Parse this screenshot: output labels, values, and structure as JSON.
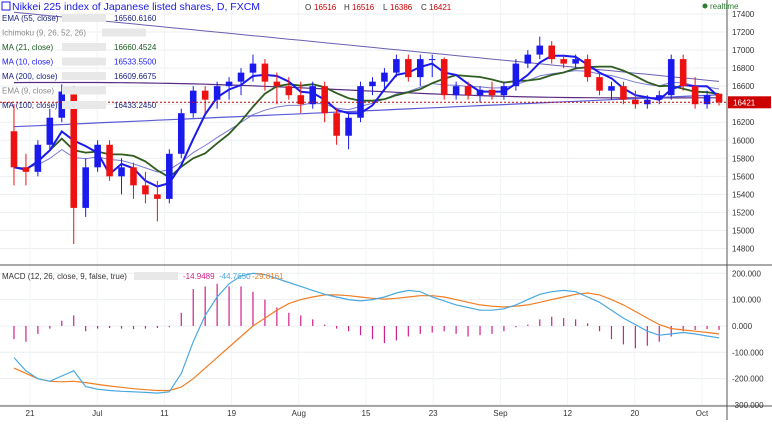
{
  "header": {
    "title": "Nikkei 225 index of Japanese listed shares, D, FXCM",
    "ohlc": {
      "o_label": "O",
      "o": "16516",
      "h_label": "H",
      "h": "16516",
      "l_label": "L",
      "l": "16386",
      "c_label": "C",
      "c": "16421"
    },
    "realtime": "realtime"
  },
  "legend": [
    {
      "label": "EMA (55, close)",
      "value": "16560.6160",
      "color": "#1a237e"
    },
    {
      "label": "Ichimoku (9, 26, 52, 26)",
      "value": "",
      "color": "#8a8a8a"
    },
    {
      "label": "MA (21, close)",
      "value": "16660.4524",
      "color": "#1b5e20"
    },
    {
      "label": "MA (10, close)",
      "value": "16533.5500",
      "color": "#1a1aff"
    },
    {
      "label": "MA (200, close)",
      "value": "16609.6675",
      "color": "#1a237e"
    },
    {
      "label": "EMA (9, close)",
      "value": "",
      "color": "#8a8a8a"
    },
    {
      "label": "MA (100, close)",
      "value": "16433.2450",
      "color": "#1a237e"
    }
  ],
  "macd_legend": {
    "label": "MACD (12, 26, close, 9, false, true)",
    "hist": "-14.9489",
    "macd": "-44.7650",
    "signal": "-29.8161"
  },
  "colors": {
    "up": "#1a1aee",
    "down": "#ee1111",
    "ma10": "#1a1aee",
    "ma21": "#2e5d1f",
    "ema55": "#3b3b99",
    "ma100": "#5b5bd6",
    "ma200": "#5a2d82",
    "macd": "#4aa8e0",
    "signal": "#f07e26",
    "hist": "#d0208a",
    "price_line": "#cc0000"
  },
  "chart_data": [
    {
      "type": "candlestick",
      "title": "Nikkei 225 index of Japanese listed shares, D, FXCM",
      "x_labels": [
        "21",
        "Jul",
        "11",
        "19",
        "Aug",
        "15",
        "23",
        "Sep",
        "12",
        "20",
        "Oct"
      ],
      "y_ticks": [
        "17400",
        "17200",
        "17000",
        "16800",
        "16600",
        "16400",
        "16200",
        "16000",
        "15800",
        "15600",
        "15400",
        "15200",
        "15000",
        "14800"
      ],
      "ylim": [
        14650,
        17500
      ],
      "last_price": "16421",
      "candles": [
        [
          16100,
          16400,
          15500,
          15700
        ],
        [
          15700,
          15850,
          15500,
          15650
        ],
        [
          15650,
          16000,
          15600,
          15950
        ],
        [
          15950,
          16350,
          15900,
          16250
        ],
        [
          16250,
          16620,
          16200,
          16540
        ],
        [
          16540,
          16600,
          14850,
          15250
        ],
        [
          15250,
          15800,
          15150,
          15700
        ],
        [
          15700,
          16000,
          15650,
          15950
        ],
        [
          15950,
          16000,
          15550,
          15600
        ],
        [
          15600,
          15800,
          15400,
          15700
        ],
        [
          15700,
          15750,
          15350,
          15500
        ],
        [
          15500,
          15650,
          15300,
          15400
        ],
        [
          15400,
          15550,
          15100,
          15350
        ],
        [
          15350,
          15900,
          15300,
          15850
        ],
        [
          15850,
          16350,
          15800,
          16300
        ],
        [
          16300,
          16600,
          16250,
          16550
        ],
        [
          16550,
          16600,
          16300,
          16450
        ],
        [
          16450,
          16650,
          16350,
          16600
        ],
        [
          16600,
          16700,
          16450,
          16650
        ],
        [
          16650,
          16800,
          16500,
          16750
        ],
        [
          16750,
          16950,
          16650,
          16850
        ],
        [
          16850,
          16900,
          16550,
          16650
        ],
        [
          16650,
          16750,
          16400,
          16600
        ],
        [
          16600,
          16700,
          16450,
          16500
        ],
        [
          16500,
          16650,
          16300,
          16400
        ],
        [
          16400,
          16650,
          16350,
          16600
        ],
        [
          16600,
          16650,
          16200,
          16300
        ],
        [
          16300,
          16350,
          15950,
          16050
        ],
        [
          16050,
          16300,
          15900,
          16250
        ],
        [
          16250,
          16650,
          16200,
          16600
        ],
        [
          16600,
          16700,
          16500,
          16650
        ],
        [
          16650,
          16800,
          16550,
          16750
        ],
        [
          16750,
          16950,
          16700,
          16900
        ],
        [
          16900,
          16950,
          16650,
          16700
        ],
        [
          16700,
          16950,
          16600,
          16900
        ],
        [
          16900,
          16950,
          16700,
          16900
        ],
        [
          16900,
          16920,
          16450,
          16500
        ],
        [
          16500,
          16650,
          16450,
          16600
        ],
        [
          16600,
          16650,
          16450,
          16500
        ],
        [
          16500,
          16600,
          16420,
          16560
        ],
        [
          16560,
          16650,
          16450,
          16500
        ],
        [
          16500,
          16650,
          16450,
          16600
        ],
        [
          16600,
          16900,
          16550,
          16850
        ],
        [
          16850,
          17000,
          16800,
          16950
        ],
        [
          16950,
          17150,
          16900,
          17050
        ],
        [
          17050,
          17100,
          16850,
          16900
        ],
        [
          16900,
          16950,
          16800,
          16850
        ],
        [
          16850,
          16950,
          16800,
          16900
        ],
        [
          16900,
          16950,
          16650,
          16700
        ],
        [
          16700,
          16750,
          16500,
          16550
        ],
        [
          16550,
          16650,
          16450,
          16600
        ],
        [
          16600,
          16650,
          16400,
          16450
        ],
        [
          16450,
          16550,
          16350,
          16400
        ],
        [
          16400,
          16500,
          16350,
          16450
        ],
        [
          16450,
          16550,
          16400,
          16500
        ],
        [
          16500,
          16950,
          16450,
          16900
        ],
        [
          16900,
          16950,
          16550,
          16600
        ],
        [
          16600,
          16700,
          16350,
          16400
        ],
        [
          16400,
          16550,
          16350,
          16500
        ],
        [
          16516,
          16516,
          16386,
          16421
        ]
      ]
    },
    {
      "type": "macd",
      "y_ticks": [
        "200.000",
        "100.000",
        "0.000",
        "-100.000",
        "-200.000",
        "-300.000"
      ],
      "ylim": [
        -300,
        220
      ],
      "macd": [
        -120,
        -170,
        -200,
        -210,
        -190,
        -170,
        -230,
        -240,
        -245,
        -248,
        -250,
        -252,
        -255,
        -250,
        -180,
        -60,
        40,
        110,
        160,
        190,
        200,
        195,
        180,
        165,
        150,
        135,
        120,
        110,
        100,
        95,
        100,
        110,
        125,
        135,
        130,
        110,
        95,
        80,
        70,
        60,
        60,
        65,
        80,
        100,
        120,
        130,
        135,
        130,
        110,
        90,
        60,
        30,
        5,
        -20,
        -35,
        -30,
        -25,
        -30,
        -38,
        -45
      ],
      "signal": [
        -160,
        -180,
        -200,
        -210,
        -212,
        -210,
        -215,
        -222,
        -228,
        -233,
        -238,
        -242,
        -245,
        -245,
        -232,
        -200,
        -160,
        -120,
        -80,
        -40,
        0,
        30,
        60,
        85,
        100,
        110,
        118,
        118,
        115,
        110,
        105,
        102,
        105,
        110,
        115,
        115,
        110,
        100,
        90,
        80,
        75,
        72,
        75,
        80,
        90,
        100,
        110,
        120,
        125,
        118,
        100,
        80,
        55,
        30,
        5,
        -10,
        -15,
        -20,
        -25,
        -30
      ],
      "histogram": [
        -50,
        -60,
        -30,
        -10,
        20,
        40,
        -20,
        -10,
        -8,
        -10,
        -12,
        -10,
        -8,
        -5,
        50,
        140,
        150,
        160,
        150,
        150,
        130,
        100,
        70,
        50,
        40,
        25,
        5,
        -10,
        -20,
        -35,
        -50,
        -65,
        -55,
        -40,
        -30,
        -25,
        -20,
        -30,
        -40,
        -35,
        -30,
        -20,
        -5,
        5,
        25,
        35,
        30,
        25,
        10,
        -20,
        -50,
        -70,
        -85,
        -75,
        -60,
        -40,
        -20,
        -15,
        -12,
        -15
      ]
    }
  ]
}
